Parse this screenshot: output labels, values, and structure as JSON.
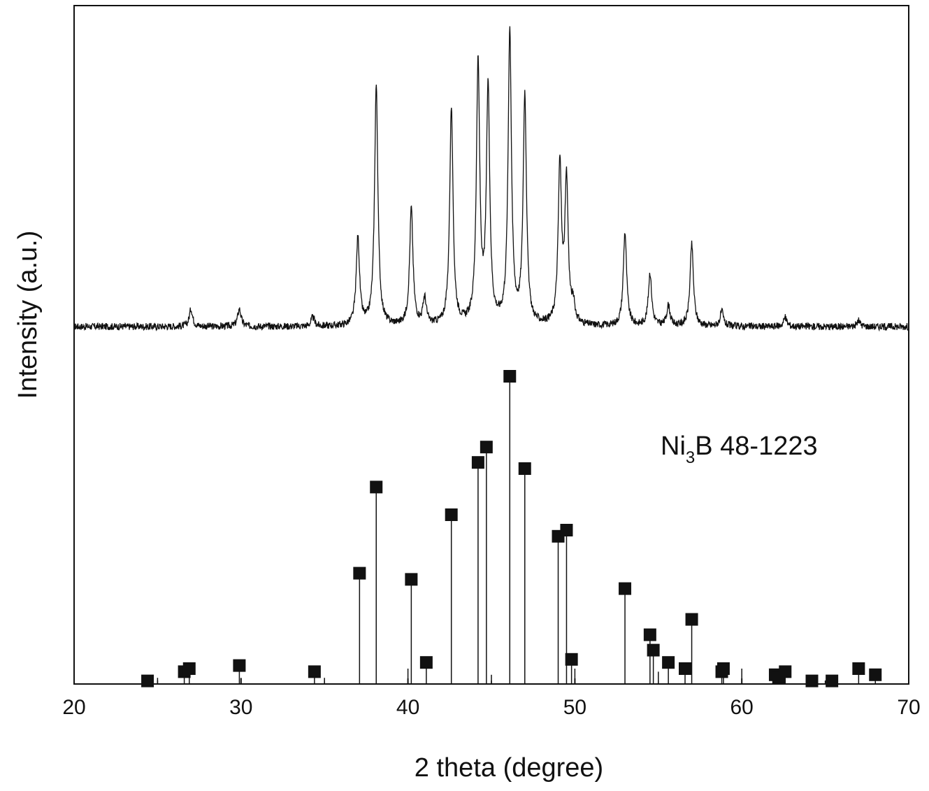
{
  "chart_data": {
    "type": "line",
    "xlabel": "2 theta (degree)",
    "ylabel": "Intensity (a.u.)",
    "xlim": [
      20,
      70
    ],
    "x_ticks": [
      "20",
      "30",
      "40",
      "50",
      "60",
      "70"
    ],
    "grid": false,
    "legend": "none",
    "colors": {
      "pattern": "#111111",
      "reference": "#111111"
    },
    "annotation": {
      "main": "Ni",
      "sub": "3",
      "rest": "B 48-1223"
    },
    "series": [
      {
        "kind": "xrd_pattern",
        "baseline": 2,
        "noise": 1.2,
        "peak_width": 0.12,
        "peaks": [
          {
            "x": 27.0,
            "y": 6
          },
          {
            "x": 29.9,
            "y": 6
          },
          {
            "x": 34.3,
            "y": 3
          },
          {
            "x": 37.0,
            "y": 30
          },
          {
            "x": 38.1,
            "y": 82
          },
          {
            "x": 40.2,
            "y": 40
          },
          {
            "x": 41.0,
            "y": 9
          },
          {
            "x": 42.6,
            "y": 74
          },
          {
            "x": 44.2,
            "y": 88
          },
          {
            "x": 44.8,
            "y": 80
          },
          {
            "x": 46.1,
            "y": 100
          },
          {
            "x": 47.0,
            "y": 78
          },
          {
            "x": 49.1,
            "y": 54
          },
          {
            "x": 49.5,
            "y": 48
          },
          {
            "x": 49.9,
            "y": 6
          },
          {
            "x": 53.0,
            "y": 32
          },
          {
            "x": 54.5,
            "y": 18
          },
          {
            "x": 55.6,
            "y": 7
          },
          {
            "x": 57.0,
            "y": 28
          },
          {
            "x": 58.8,
            "y": 5
          },
          {
            "x": 62.6,
            "y": 3
          },
          {
            "x": 67.0,
            "y": 2
          }
        ]
      },
      {
        "kind": "reference_lines",
        "name": "Ni3B 48-1223",
        "points": [
          {
            "x": 24.4,
            "y": 1
          },
          {
            "x": 25.0,
            "y": 2,
            "marker": false
          },
          {
            "x": 26.6,
            "y": 4
          },
          {
            "x": 26.9,
            "y": 5
          },
          {
            "x": 29.9,
            "y": 6
          },
          {
            "x": 30.0,
            "y": 2,
            "marker": false
          },
          {
            "x": 34.4,
            "y": 4
          },
          {
            "x": 35.0,
            "y": 2,
            "marker": false
          },
          {
            "x": 37.1,
            "y": 36
          },
          {
            "x": 38.1,
            "y": 64
          },
          {
            "x": 40.0,
            "y": 5,
            "marker": false
          },
          {
            "x": 40.2,
            "y": 34
          },
          {
            "x": 41.1,
            "y": 7
          },
          {
            "x": 42.6,
            "y": 55
          },
          {
            "x": 44.2,
            "y": 72
          },
          {
            "x": 44.7,
            "y": 77
          },
          {
            "x": 45.0,
            "y": 3,
            "marker": false
          },
          {
            "x": 46.1,
            "y": 100
          },
          {
            "x": 47.0,
            "y": 70
          },
          {
            "x": 49.0,
            "y": 48
          },
          {
            "x": 49.5,
            "y": 50
          },
          {
            "x": 49.8,
            "y": 8
          },
          {
            "x": 50.0,
            "y": 5,
            "marker": false
          },
          {
            "x": 53.0,
            "y": 31
          },
          {
            "x": 54.5,
            "y": 16
          },
          {
            "x": 54.7,
            "y": 11
          },
          {
            "x": 55.0,
            "y": 4,
            "marker": false
          },
          {
            "x": 55.6,
            "y": 7
          },
          {
            "x": 56.6,
            "y": 5
          },
          {
            "x": 57.0,
            "y": 21
          },
          {
            "x": 58.8,
            "y": 4
          },
          {
            "x": 58.9,
            "y": 5
          },
          {
            "x": 60.0,
            "y": 5,
            "marker": false
          },
          {
            "x": 62.0,
            "y": 3
          },
          {
            "x": 62.2,
            "y": 2
          },
          {
            "x": 62.6,
            "y": 4
          },
          {
            "x": 64.2,
            "y": 1
          },
          {
            "x": 65.4,
            "y": 1
          },
          {
            "x": 67.0,
            "y": 5
          },
          {
            "x": 68.0,
            "y": 3
          }
        ]
      }
    ]
  }
}
